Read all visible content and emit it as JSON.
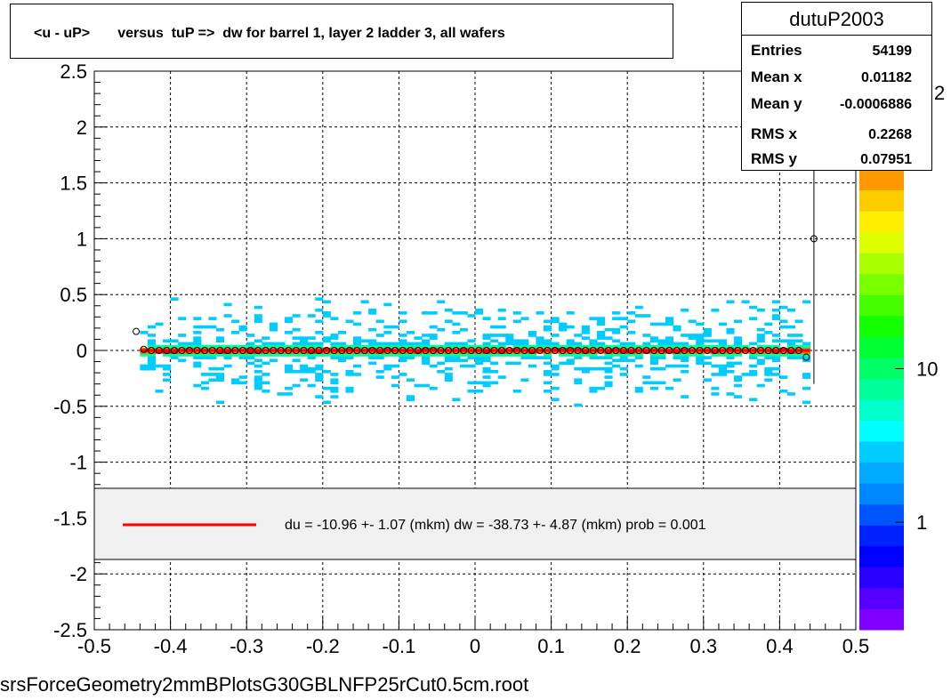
{
  "title": "<u - uP>       versus  tuP =>  dw for barrel 1, layer 2 ladder 3, all wafers",
  "footer": "srsForceGeometry2mmBPlotsG30GBLNFP25rCut0.5cm.root",
  "stats": {
    "name": "dutuP2003",
    "rows": [
      {
        "label": "Entries",
        "value": "54199"
      },
      {
        "label": "Mean x",
        "value": "0.01182"
      },
      {
        "label": "Mean y",
        "value": "-0.0006886"
      },
      {
        "label": "RMS x",
        "value": "0.2268"
      },
      {
        "label": "RMS y",
        "value": "0.07951"
      }
    ]
  },
  "legend": {
    "text": "du =  -10.96 +-  1.07 (mkm) dw =  -38.73 +-  4.87 (mkm) prob = 0.001",
    "line_color": "#ff0000"
  },
  "chart_data": {
    "type": "heatmap",
    "title": "<u - uP>       versus  tuP =>  dw for barrel 1, layer 2 ladder 3, all wafers",
    "xlabel": "",
    "ylabel": "",
    "xlim": [
      -0.5,
      0.5
    ],
    "ylim": [
      -2.5,
      2.5
    ],
    "x_ticks": [
      "-0.5",
      "-0.4",
      "-0.3",
      "-0.2",
      "-0.1",
      "0",
      "0.1",
      "0.2",
      "0.3",
      "0.4",
      "0.5"
    ],
    "y_ticks": [
      "-2.5",
      "-2",
      "-1.5",
      "-1",
      "-0.5",
      "0",
      "0.5",
      "1",
      "1.5",
      "2",
      "2.5"
    ],
    "grid": true,
    "colorbar": {
      "scale": "log",
      "tick_labels": [
        "1",
        "10"
      ],
      "exponent_label": "2"
    },
    "density_band": {
      "x_range": [
        -0.44,
        0.44
      ],
      "y_core": [
        -0.03,
        0.03
      ],
      "y_sparse": [
        -0.5,
        0.5
      ]
    },
    "profile_points": {
      "x": [
        -0.445,
        -0.435,
        -0.425,
        -0.415,
        -0.405,
        -0.395,
        -0.385,
        -0.375,
        -0.365,
        -0.355,
        -0.345,
        -0.335,
        -0.325,
        -0.315,
        -0.305,
        -0.295,
        -0.285,
        -0.275,
        -0.265,
        -0.255,
        -0.245,
        -0.235,
        -0.225,
        -0.215,
        -0.205,
        -0.195,
        -0.185,
        -0.175,
        -0.165,
        -0.155,
        -0.145,
        -0.135,
        -0.125,
        -0.115,
        -0.105,
        -0.095,
        -0.085,
        -0.075,
        -0.065,
        -0.055,
        -0.045,
        -0.035,
        -0.025,
        -0.015,
        -0.005,
        0.005,
        0.015,
        0.025,
        0.035,
        0.045,
        0.055,
        0.065,
        0.075,
        0.085,
        0.095,
        0.105,
        0.115,
        0.125,
        0.135,
        0.145,
        0.155,
        0.165,
        0.175,
        0.185,
        0.195,
        0.205,
        0.215,
        0.225,
        0.235,
        0.245,
        0.255,
        0.265,
        0.275,
        0.285,
        0.295,
        0.305,
        0.315,
        0.325,
        0.335,
        0.345,
        0.355,
        0.365,
        0.375,
        0.385,
        0.395,
        0.405,
        0.415,
        0.425,
        0.435,
        0.445
      ],
      "y": [
        0.17,
        0.01,
        0,
        0,
        0,
        0,
        0,
        0,
        0,
        0,
        0,
        0,
        0,
        0,
        0,
        0,
        0,
        0,
        0,
        0,
        0,
        0,
        0,
        0,
        0,
        0,
        0,
        0,
        0,
        0,
        0,
        0,
        0,
        0,
        0,
        0,
        0,
        0,
        0,
        0,
        0,
        0,
        0,
        0,
        0,
        0,
        0,
        0,
        0,
        0,
        0,
        0,
        0,
        0,
        0,
        0,
        0,
        0,
        0,
        0,
        0,
        0,
        0,
        0,
        0,
        0,
        0,
        0,
        0,
        0,
        0,
        0,
        0,
        0,
        0,
        0,
        0,
        0,
        0,
        0,
        0,
        0,
        0,
        0,
        0,
        0,
        0,
        0,
        -0.06,
        1.0
      ]
    },
    "fit_line": {
      "color": "#ff0000",
      "y": 0.0
    }
  }
}
